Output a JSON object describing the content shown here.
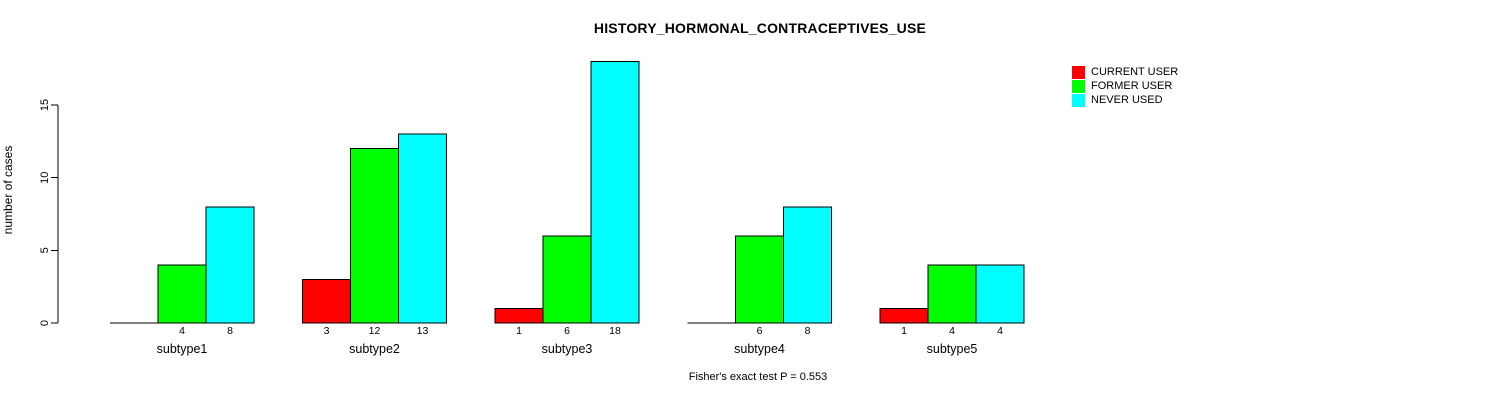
{
  "chart_data": {
    "type": "bar",
    "title": "HISTORY_HORMONAL_CONTRACEPTIVES_USE",
    "ylabel": "number of cases",
    "xlabel": "",
    "caption": "Fisher's exact test P = 0.553",
    "categories": [
      "subtype1",
      "subtype2",
      "subtype3",
      "subtype4",
      "subtype5"
    ],
    "series": [
      {
        "name": "CURRENT USER",
        "color": "#FF0000",
        "values": [
          0,
          3,
          1,
          0,
          1
        ]
      },
      {
        "name": "FORMER USER",
        "color": "#00FF00",
        "values": [
          4,
          12,
          6,
          6,
          4
        ]
      },
      {
        "name": "NEVER USED",
        "color": "#00FFFF",
        "values": [
          8,
          13,
          18,
          8,
          4
        ]
      }
    ],
    "bar_value_labels": [
      [
        "",
        "4",
        "8"
      ],
      [
        "3",
        "12",
        "13"
      ],
      [
        "1",
        "6",
        "18"
      ],
      [
        "",
        "6",
        "8"
      ],
      [
        "1",
        "4",
        "4"
      ]
    ],
    "yticks": [
      0,
      5,
      10,
      15
    ],
    "ylim": [
      0,
      18.3
    ],
    "grid": false,
    "legend_position": "top-right",
    "colors": {
      "axis": "#000000",
      "text": "#000000",
      "bar_border": "#000000",
      "background": "#FFFFFF"
    }
  }
}
